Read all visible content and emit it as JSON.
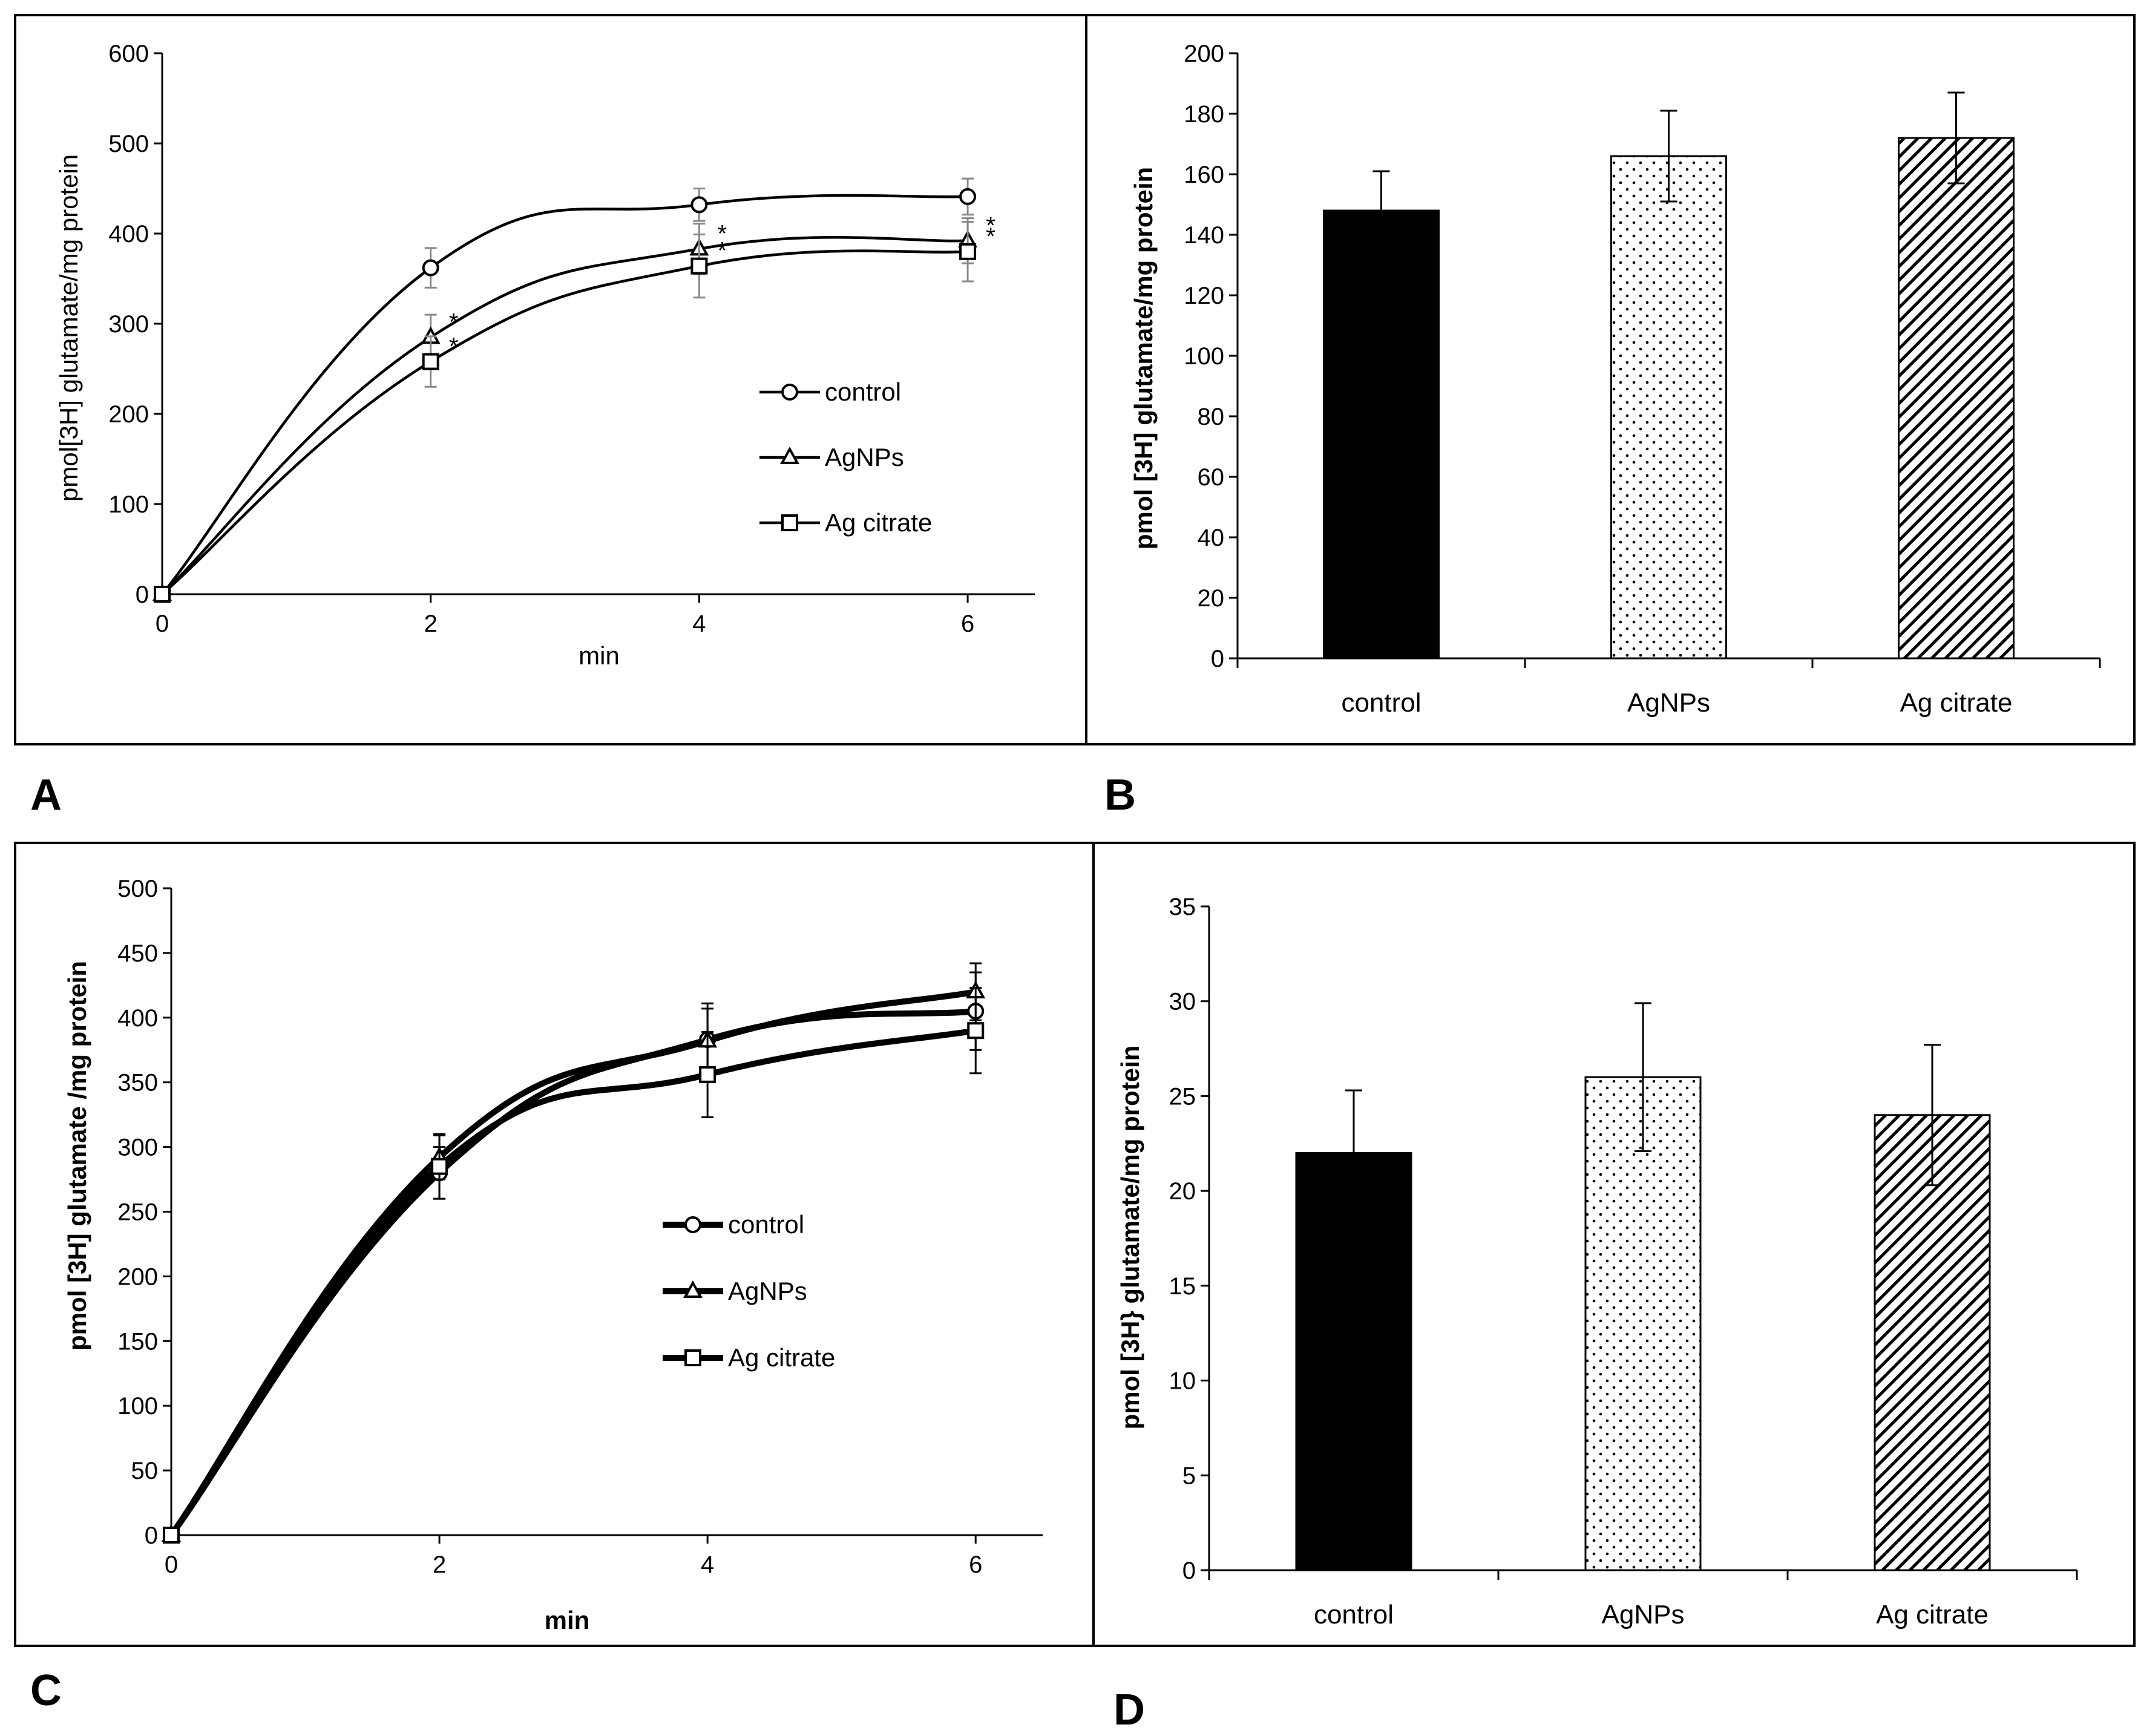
{
  "panel_labels": [
    "A",
    "B",
    "C",
    "D"
  ],
  "chart_data": [
    {
      "panel": "A",
      "type": "line",
      "xlabel": "min",
      "ylabel": "pmol[3H] glutamate/mg protein",
      "x": [
        0,
        2,
        4,
        6
      ],
      "xticks": [
        "0",
        "2",
        "4",
        "6"
      ],
      "xlim": [
        0,
        6.5
      ],
      "ylim": [
        0,
        600
      ],
      "yticks": [
        "0",
        "100",
        "200",
        "300",
        "400",
        "500",
        "600"
      ],
      "series": [
        {
          "name": "control",
          "marker": "circle",
          "values": [
            0,
            362,
            432,
            441
          ],
          "errors": [
            0,
            22,
            18,
            20
          ],
          "stars": [
            "",
            "",
            "",
            ""
          ]
        },
        {
          "name": "AgNPs",
          "marker": "triangle",
          "values": [
            0,
            285,
            383,
            392
          ],
          "errors": [
            0,
            25,
            28,
            25
          ],
          "stars": [
            "",
            "*",
            "*",
            "*"
          ]
        },
        {
          "name": "Ag citrate",
          "marker": "square",
          "values": [
            0,
            258,
            364,
            380
          ],
          "errors": [
            0,
            28,
            35,
            33
          ],
          "stars": [
            "",
            "*",
            "*",
            "*"
          ]
        }
      ],
      "legend_position": "center-right"
    },
    {
      "panel": "B",
      "type": "bar",
      "ylabel": "pmol [3H] glutamate/mg protein",
      "categories": [
        "control",
        "AgNPs",
        "Ag citrate"
      ],
      "values": [
        148,
        166,
        172
      ],
      "errors": [
        13,
        15,
        15
      ],
      "patterns": [
        "solid",
        "dots",
        "diagonal"
      ],
      "ylim": [
        0,
        200
      ],
      "yticks": [
        "0",
        "20",
        "40",
        "60",
        "80",
        "100",
        "120",
        "140",
        "160",
        "180",
        "200"
      ]
    },
    {
      "panel": "C",
      "type": "line",
      "xlabel": "min",
      "ylabel": "pmol [3H] glutamate /mg protein",
      "x": [
        0,
        2,
        4,
        6
      ],
      "xticks": [
        "0",
        "2",
        "4",
        "6"
      ],
      "xlim": [
        0,
        6.5
      ],
      "ylim": [
        0,
        500
      ],
      "yticks": [
        "0",
        "50",
        "100",
        "150",
        "200",
        "250",
        "300",
        "350",
        "400",
        "450",
        "500"
      ],
      "series": [
        {
          "name": "control",
          "marker": "circle",
          "values": [
            0,
            280,
            383,
            405
          ],
          "errors": [
            0,
            20,
            28,
            30
          ]
        },
        {
          "name": "AgNPs",
          "marker": "triangle",
          "values": [
            0,
            292,
            382,
            420
          ],
          "errors": [
            0,
            17,
            25,
            22
          ]
        },
        {
          "name": "Ag citrate",
          "marker": "square",
          "values": [
            0,
            285,
            356,
            390
          ],
          "errors": [
            0,
            25,
            33,
            33
          ]
        }
      ],
      "legend_position": "center-right"
    },
    {
      "panel": "D",
      "type": "bar",
      "ylabel": "pmol [3H} glutamate/mg protein",
      "categories": [
        "control",
        "AgNPs",
        "Ag citrate"
      ],
      "values": [
        22,
        26,
        24
      ],
      "errors": [
        3.3,
        3.9,
        3.7
      ],
      "patterns": [
        "solid",
        "dots",
        "diagonal"
      ],
      "ylim": [
        0,
        35
      ],
      "yticks": [
        "0",
        "5",
        "10",
        "15",
        "20",
        "25",
        "30",
        "35"
      ]
    }
  ]
}
